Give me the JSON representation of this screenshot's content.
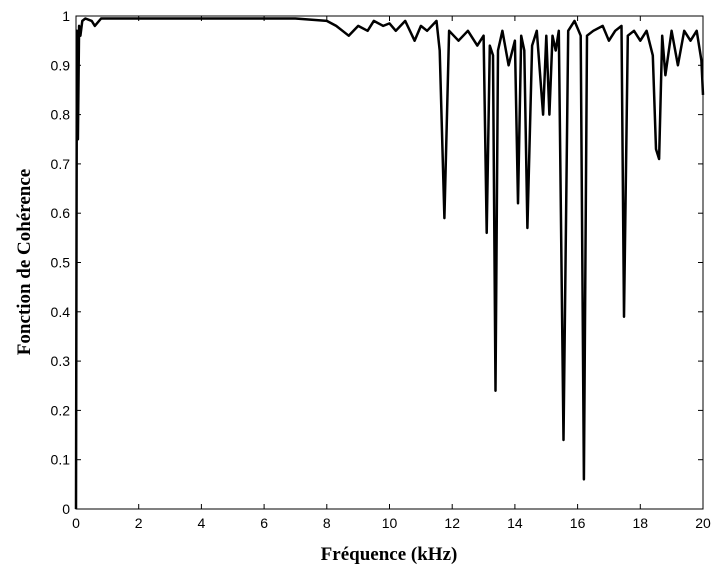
{
  "chart_data": {
    "type": "line",
    "title": "",
    "xlabel": "Fréquence (kHz)",
    "ylabel": "Fonction de Cohérence",
    "xlim": [
      0,
      20
    ],
    "ylim": [
      0,
      1
    ],
    "x_ticks": [
      "0",
      "2",
      "4",
      "6",
      "8",
      "10",
      "12",
      "14",
      "16",
      "18",
      "20"
    ],
    "y_ticks": [
      "0",
      "0.1",
      "0.2",
      "0.3",
      "0.4",
      "0.5",
      "0.6",
      "0.7",
      "0.8",
      "0.9",
      "1"
    ],
    "grid": false,
    "legend": "none",
    "line_color": "#000000",
    "series": [
      {
        "x": [
          0.0,
          0.03,
          0.06,
          0.1,
          0.14,
          0.2,
          0.3,
          0.5,
          0.6,
          0.8,
          1.0,
          2.0,
          3.0,
          4.0,
          5.0,
          6.0,
          7.0,
          8.0,
          8.3,
          8.5,
          8.7,
          9.0,
          9.3,
          9.5,
          9.8,
          10.0,
          10.2,
          10.5,
          10.8,
          11.0,
          11.2,
          11.5,
          11.6,
          11.75,
          11.9,
          12.2,
          12.5,
          12.8,
          13.0,
          13.1,
          13.2,
          13.3,
          13.38,
          13.46,
          13.6,
          13.8,
          14.0,
          14.1,
          14.2,
          14.3,
          14.4,
          14.55,
          14.7,
          14.9,
          15.0,
          15.1,
          15.2,
          15.3,
          15.4,
          15.55,
          15.7,
          15.9,
          16.1,
          16.2,
          16.3,
          16.5,
          16.8,
          17.0,
          17.2,
          17.4,
          17.48,
          17.6,
          17.8,
          18.0,
          18.2,
          18.4,
          18.5,
          18.6,
          18.7,
          18.8,
          19.0,
          19.2,
          19.4,
          19.6,
          19.8,
          19.95,
          20.0
        ],
        "y": [
          0.0,
          0.97,
          0.75,
          0.98,
          0.96,
          0.99,
          0.995,
          0.99,
          0.98,
          0.995,
          0.995,
          0.995,
          0.995,
          0.995,
          0.995,
          0.995,
          0.995,
          0.99,
          0.98,
          0.97,
          0.96,
          0.98,
          0.97,
          0.99,
          0.98,
          0.985,
          0.97,
          0.99,
          0.95,
          0.98,
          0.97,
          0.99,
          0.93,
          0.59,
          0.97,
          0.95,
          0.97,
          0.94,
          0.96,
          0.56,
          0.94,
          0.92,
          0.24,
          0.93,
          0.97,
          0.9,
          0.95,
          0.62,
          0.96,
          0.93,
          0.57,
          0.94,
          0.97,
          0.8,
          0.96,
          0.8,
          0.96,
          0.93,
          0.97,
          0.14,
          0.97,
          0.99,
          0.96,
          0.06,
          0.96,
          0.97,
          0.98,
          0.95,
          0.97,
          0.98,
          0.39,
          0.96,
          0.97,
          0.95,
          0.97,
          0.92,
          0.73,
          0.71,
          0.96,
          0.88,
          0.97,
          0.9,
          0.97,
          0.95,
          0.97,
          0.91,
          0.84
        ]
      }
    ]
  }
}
